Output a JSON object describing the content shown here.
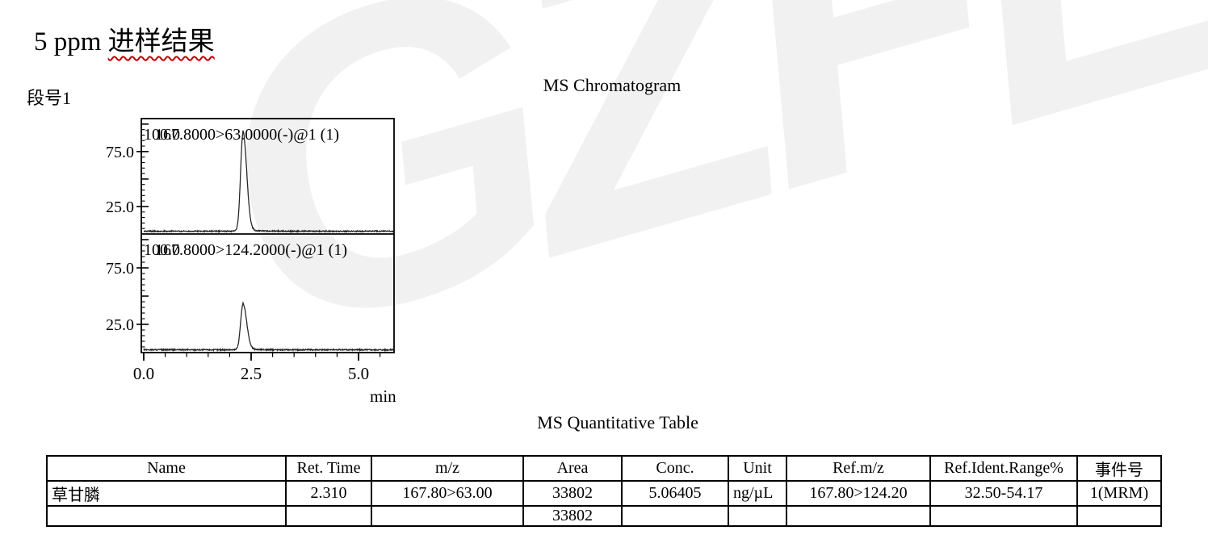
{
  "page": {
    "title_prefix": "5 ppm ",
    "title_chinese": "进样结果",
    "watermark_text": "GZFL",
    "spellcheck_color": "#c00000",
    "background_color": "#ffffff"
  },
  "chromatogram": {
    "segment_label": "段号1",
    "title": "MS Chromatogram"
  },
  "chart_data": {
    "type": "line",
    "title": "MS Chromatogram",
    "xlabel": "min",
    "ylabel": "",
    "x_range": [
      0.0,
      5.85
    ],
    "x_major_ticks": [
      0.0,
      2.5,
      5.0
    ],
    "x_minor_step": 0.5,
    "y_range": [
      0,
      105
    ],
    "y_major_step": 25,
    "y_minor_step": 5,
    "y_labeled_ticks": [
      75.0,
      25.0
    ],
    "y_top_label": "100.0",
    "grid": false,
    "legend": "none",
    "panels": [
      {
        "trace_label": "167.8000>63.0000(-)@1 (1)",
        "peak": {
          "retention_time_min": 2.31,
          "height_pct": 89,
          "sigma_left_min": 0.055,
          "sigma_right_min": 0.085
        },
        "baseline_pct": 2.5
      },
      {
        "trace_label": "167.8000>124.2000(-)@1 (1)",
        "peak": {
          "retention_time_min": 2.31,
          "height_pct": 40,
          "sigma_left_min": 0.055,
          "sigma_right_min": 0.085
        },
        "baseline_pct": 2.5
      }
    ]
  },
  "table": {
    "title": "MS Quantitative Table",
    "headers": [
      "Name",
      "Ret. Time",
      "m/z",
      "Area",
      "Conc.",
      "Unit",
      "Ref.m/z",
      "Ref.Ident.Range%",
      "事件号"
    ],
    "rows": [
      [
        "草甘膦",
        "2.310",
        "167.80>63.00",
        "33802",
        "5.06405",
        "ng/µL",
        "167.80>124.20",
        "32.50-54.17",
        "1(MRM)"
      ],
      [
        "",
        "",
        "",
        "33802",
        "",
        "",
        "",
        "",
        ""
      ]
    ]
  }
}
